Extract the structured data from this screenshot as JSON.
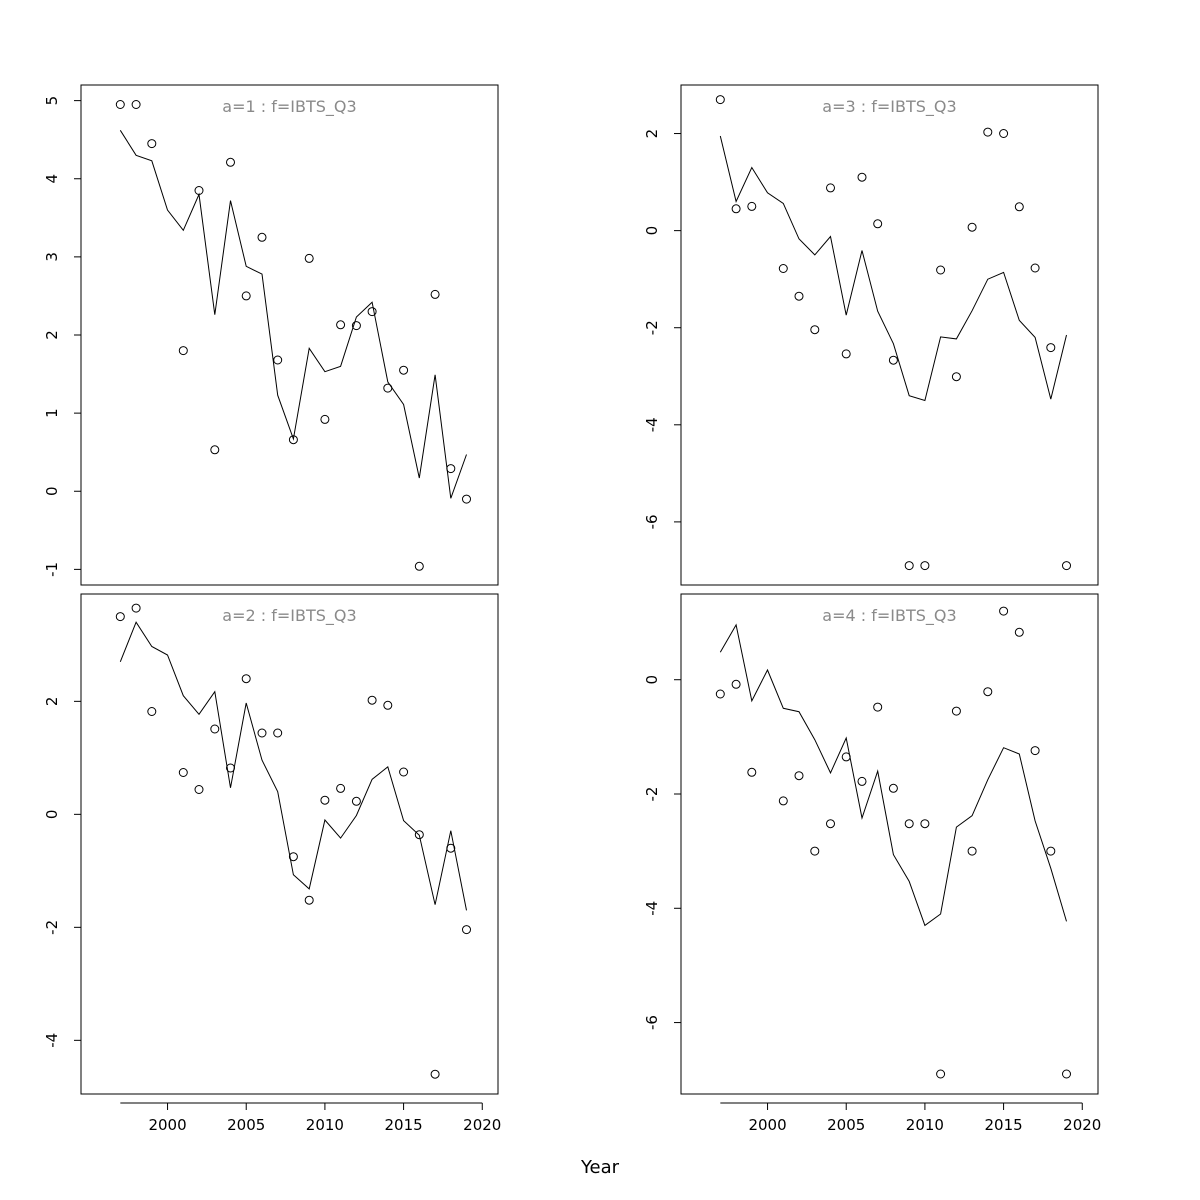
{
  "chart_data": {
    "type": "scatter",
    "xlabel": "Year",
    "ylabel": "",
    "grid": false,
    "legend": "none",
    "x": [
      1997,
      1998,
      1999,
      2000,
      2001,
      2002,
      2003,
      2004,
      2005,
      2006,
      2007,
      2008,
      2009,
      2010,
      2011,
      2012,
      2013,
      2014,
      2015,
      2016,
      2017,
      2018,
      2019
    ],
    "xlim": [
      1994.5,
      2021.0
    ],
    "xticks": [
      2000,
      2005,
      2010,
      2015,
      2020
    ],
    "panels": [
      {
        "title": "a=1  :  f=IBTS_Q3",
        "ylim": [
          -1.2,
          5.2
        ],
        "yticks": [
          -1,
          0,
          1,
          2,
          3,
          4,
          5
        ],
        "points": [
          [
            1997,
            4.95
          ],
          [
            1998,
            4.95
          ],
          [
            1999,
            4.45
          ],
          [
            2001,
            1.8
          ],
          [
            2002,
            3.85
          ],
          [
            2003,
            0.53
          ],
          [
            2004,
            4.21
          ],
          [
            2005,
            2.5
          ],
          [
            2006,
            3.25
          ],
          [
            2007,
            1.68
          ],
          [
            2008,
            0.66
          ],
          [
            2009,
            2.98
          ],
          [
            2010,
            0.92
          ],
          [
            2011,
            2.13
          ],
          [
            2012,
            2.12
          ],
          [
            2013,
            2.3
          ],
          [
            2014,
            1.32
          ],
          [
            2015,
            1.55
          ],
          [
            2016,
            -0.96
          ],
          [
            2017,
            2.52
          ],
          [
            2018,
            0.29
          ],
          [
            2019,
            -0.1
          ]
        ],
        "fitted": [
          4.62,
          4.3,
          4.23,
          3.6,
          3.34,
          3.8,
          2.26,
          3.72,
          2.88,
          2.78,
          1.23,
          0.67,
          1.83,
          1.53,
          1.6,
          2.23,
          2.42,
          1.4,
          1.11,
          0.17,
          1.49,
          -0.09,
          0.47
        ]
      },
      {
        "title": "a=3  :  f=IBTS_Q3",
        "ylim": [
          -7.3,
          3.0
        ],
        "yticks": [
          -6,
          -4,
          -2,
          0,
          2
        ],
        "points": [
          [
            1997,
            2.7
          ],
          [
            1998,
            0.45
          ],
          [
            1999,
            0.5
          ],
          [
            2001,
            -0.78
          ],
          [
            2002,
            -1.35
          ],
          [
            2003,
            -2.04
          ],
          [
            2004,
            0.88
          ],
          [
            2005,
            -2.54
          ],
          [
            2006,
            1.1
          ],
          [
            2007,
            0.14
          ],
          [
            2008,
            -2.67
          ],
          [
            2009,
            -6.9
          ],
          [
            2010,
            -6.9
          ],
          [
            2011,
            -0.81
          ],
          [
            2012,
            -3.01
          ],
          [
            2013,
            0.07
          ],
          [
            2014,
            2.03
          ],
          [
            2015,
            2.0
          ],
          [
            2016,
            0.49
          ],
          [
            2017,
            -0.77
          ],
          [
            2018,
            -2.41
          ],
          [
            2019,
            -6.9
          ]
        ],
        "fitted": [
          1.95,
          0.6,
          1.3,
          0.78,
          0.56,
          -0.17,
          -0.5,
          -0.12,
          -1.74,
          -0.41,
          -1.66,
          -2.33,
          -3.4,
          -3.5,
          -2.19,
          -2.23,
          -1.65,
          -1.0,
          -0.86,
          -1.85,
          -2.2,
          -3.47,
          -2.15
        ]
      },
      {
        "title": "a=2  :  f=IBTS_Q3",
        "ylim": [
          -4.95,
          3.9
        ],
        "yticks": [
          -4,
          -2,
          0,
          2
        ],
        "points": [
          [
            1997,
            3.5
          ],
          [
            1998,
            3.65
          ],
          [
            1999,
            1.82
          ],
          [
            2001,
            0.74
          ],
          [
            2002,
            0.44
          ],
          [
            2003,
            1.51
          ],
          [
            2004,
            0.82
          ],
          [
            2005,
            2.4
          ],
          [
            2006,
            1.44
          ],
          [
            2007,
            1.44
          ],
          [
            2008,
            -0.75
          ],
          [
            2009,
            -1.52
          ],
          [
            2010,
            0.25
          ],
          [
            2011,
            0.46
          ],
          [
            2012,
            0.23
          ],
          [
            2013,
            2.02
          ],
          [
            2014,
            1.93
          ],
          [
            2015,
            0.75
          ],
          [
            2016,
            -0.36
          ],
          [
            2017,
            -4.6
          ],
          [
            2018,
            -0.6
          ],
          [
            2019,
            -2.04
          ]
        ],
        "fitted": [
          2.7,
          3.4,
          2.97,
          2.82,
          2.1,
          1.77,
          2.17,
          0.47,
          1.97,
          0.96,
          0.4,
          -1.07,
          -1.32,
          -0.1,
          -0.42,
          -0.02,
          0.62,
          0.84,
          -0.11,
          -0.37,
          -1.6,
          -0.29,
          -1.7
        ]
      },
      {
        "title": "a=4  :  f=IBTS_Q3",
        "ylim": [
          -7.25,
          1.5
        ],
        "yticks": [
          -6,
          -4,
          -2,
          0
        ],
        "points": [
          [
            1997,
            -0.25
          ],
          [
            1998,
            -0.08
          ],
          [
            1999,
            -1.62
          ],
          [
            2001,
            -2.12
          ],
          [
            2002,
            -1.68
          ],
          [
            2003,
            -3.0
          ],
          [
            2004,
            -2.52
          ],
          [
            2005,
            -1.35
          ],
          [
            2006,
            -1.78
          ],
          [
            2007,
            -0.48
          ],
          [
            2008,
            -1.9
          ],
          [
            2009,
            -2.52
          ],
          [
            2010,
            -2.52
          ],
          [
            2011,
            -6.9
          ],
          [
            2012,
            -0.55
          ],
          [
            2013,
            -3.0
          ],
          [
            2014,
            -0.21
          ],
          [
            2015,
            1.2
          ],
          [
            2016,
            0.83
          ],
          [
            2017,
            -1.24
          ],
          [
            2018,
            -3.0
          ],
          [
            2019,
            -6.9
          ]
        ],
        "fitted": [
          0.48,
          0.96,
          -0.37,
          0.17,
          -0.5,
          -0.56,
          -1.05,
          -1.63,
          -1.02,
          -2.42,
          -1.6,
          -3.06,
          -3.53,
          -4.3,
          -4.1,
          -2.58,
          -2.38,
          -1.75,
          -1.19,
          -1.3,
          -2.47,
          -3.3,
          -4.23
        ]
      }
    ]
  }
}
